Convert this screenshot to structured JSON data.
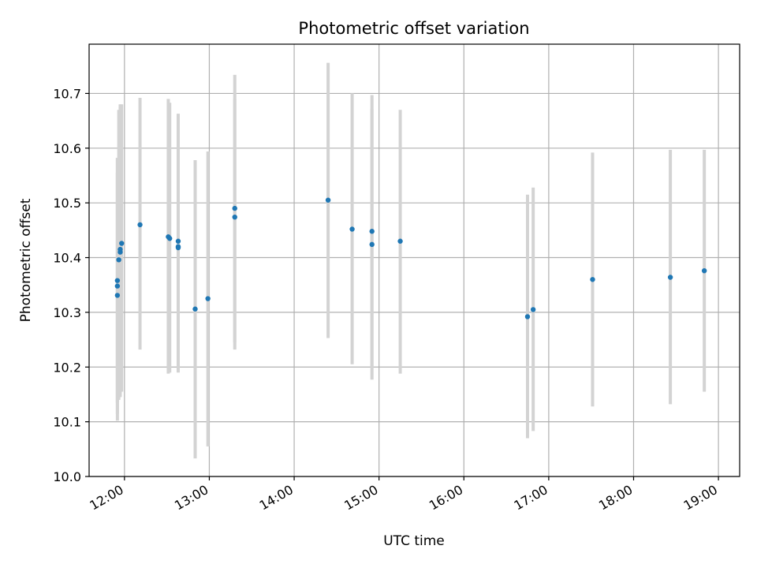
{
  "chart_data": {
    "type": "scatter",
    "title": "Photometric offset variation",
    "xlabel": "UTC time",
    "ylabel": "Photometric offset",
    "xlim": [
      "11:35",
      "19:15"
    ],
    "ylim": [
      10.0,
      10.79
    ],
    "grid": true,
    "x_ticks": [
      "12:00",
      "13:00",
      "14:00",
      "15:00",
      "16:00",
      "17:00",
      "18:00",
      "19:00"
    ],
    "y_ticks": [
      "10.0",
      "10.1",
      "10.2",
      "10.3",
      "10.4",
      "10.5",
      "10.6",
      "10.7"
    ],
    "marker_color": "#1f77b4",
    "errorbar_color": "#d3d3d3",
    "points": [
      {
        "time": "11:55",
        "y": 10.358,
        "ylow": 10.135,
        "yhigh": 10.582
      },
      {
        "time": "11:55",
        "y": 10.348,
        "ylow": 10.115,
        "yhigh": 10.582
      },
      {
        "time": "11:55",
        "y": 10.331,
        "ylow": 10.102,
        "yhigh": 10.555
      },
      {
        "time": "11:56",
        "y": 10.396,
        "ylow": 10.14,
        "yhigh": 10.67
      },
      {
        "time": "11:57",
        "y": 10.41,
        "ylow": 10.145,
        "yhigh": 10.675
      },
      {
        "time": "11:57",
        "y": 10.415,
        "ylow": 10.15,
        "yhigh": 10.68
      },
      {
        "time": "11:58",
        "y": 10.426,
        "ylow": 10.155,
        "yhigh": 10.68
      },
      {
        "time": "12:11",
        "y": 10.46,
        "ylow": 10.232,
        "yhigh": 10.692
      },
      {
        "time": "12:31",
        "y": 10.438,
        "ylow": 10.188,
        "yhigh": 10.69
      },
      {
        "time": "12:32",
        "y": 10.435,
        "ylow": 10.19,
        "yhigh": 10.683
      },
      {
        "time": "12:38",
        "y": 10.43,
        "ylow": 10.19,
        "yhigh": 10.663
      },
      {
        "time": "12:38",
        "y": 10.42,
        "ylow": 10.2,
        "yhigh": 10.65
      },
      {
        "time": "12:38",
        "y": 10.418,
        "ylow": 10.195,
        "yhigh": 10.64
      },
      {
        "time": "12:50",
        "y": 10.306,
        "ylow": 10.033,
        "yhigh": 10.578
      },
      {
        "time": "12:59",
        "y": 10.325,
        "ylow": 10.055,
        "yhigh": 10.594
      },
      {
        "time": "13:18",
        "y": 10.49,
        "ylow": 10.245,
        "yhigh": 10.734
      },
      {
        "time": "13:18",
        "y": 10.474,
        "ylow": 10.232,
        "yhigh": 10.69
      },
      {
        "time": "14:24",
        "y": 10.505,
        "ylow": 10.253,
        "yhigh": 10.756
      },
      {
        "time": "14:41",
        "y": 10.452,
        "ylow": 10.205,
        "yhigh": 10.7
      },
      {
        "time": "14:55",
        "y": 10.448,
        "ylow": 10.2,
        "yhigh": 10.697
      },
      {
        "time": "14:55",
        "y": 10.424,
        "ylow": 10.177,
        "yhigh": 10.672
      },
      {
        "time": "15:15",
        "y": 10.43,
        "ylow": 10.188,
        "yhigh": 10.67
      },
      {
        "time": "16:45",
        "y": 10.292,
        "ylow": 10.07,
        "yhigh": 10.515
      },
      {
        "time": "16:49",
        "y": 10.305,
        "ylow": 10.083,
        "yhigh": 10.528
      },
      {
        "time": "17:31",
        "y": 10.36,
        "ylow": 10.128,
        "yhigh": 10.592
      },
      {
        "time": "18:26",
        "y": 10.364,
        "ylow": 10.132,
        "yhigh": 10.597
      },
      {
        "time": "18:50",
        "y": 10.376,
        "ylow": 10.155,
        "yhigh": 10.597
      }
    ]
  }
}
